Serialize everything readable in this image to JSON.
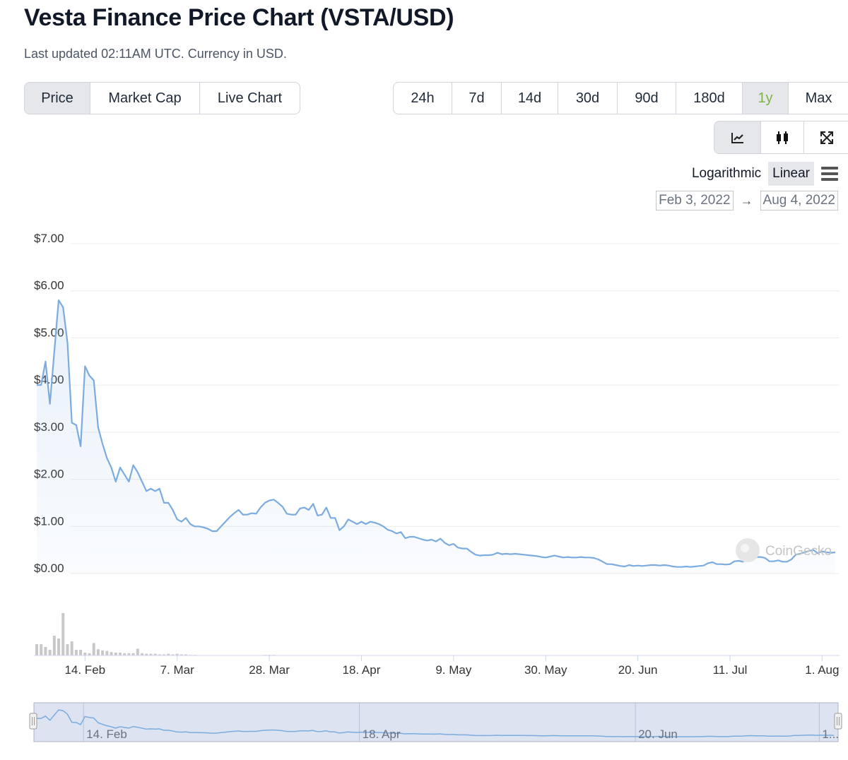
{
  "header": {
    "title": "Vesta Finance Price Chart (VSTA/USD)",
    "subtitle": "Last updated 02:11AM UTC. Currency in USD."
  },
  "type_tabs": [
    {
      "label": "Price",
      "active": true
    },
    {
      "label": "Market Cap",
      "active": false
    },
    {
      "label": "Live Chart",
      "active": false
    }
  ],
  "range_tabs": [
    {
      "label": "24h",
      "active": false
    },
    {
      "label": "7d",
      "active": false
    },
    {
      "label": "14d",
      "active": false
    },
    {
      "label": "30d",
      "active": false
    },
    {
      "label": "90d",
      "active": false
    },
    {
      "label": "180d",
      "active": false
    },
    {
      "label": "1y",
      "active": true
    },
    {
      "label": "Max",
      "active": false
    }
  ],
  "view_tabs": [
    {
      "icon": "line-chart-icon",
      "active": true
    },
    {
      "icon": "candlestick-icon",
      "active": false
    },
    {
      "icon": "expand-icon",
      "active": false
    }
  ],
  "scale": {
    "log_label": "Logarithmic",
    "linear_label": "Linear",
    "active": "Linear"
  },
  "date_range": {
    "from": "Feb 3, 2022",
    "arrow": "→",
    "to": "Aug 4, 2022"
  },
  "watermark": "CoinGecko",
  "colors": {
    "line": "#7cacdf",
    "volume": "#c8c8c8",
    "active_range": "#7cb342",
    "navigator": "#dde3f1"
  },
  "chart_data": {
    "type": "line",
    "title": "",
    "xlabel": "",
    "ylabel": "",
    "ylim": [
      0,
      7
    ],
    "y_ticks": [
      "$7.00",
      "$6.00",
      "$5.00",
      "$4.00",
      "$3.00",
      "$2.00",
      "$1.00",
      "$0.00"
    ],
    "y_tick_values": [
      7,
      6,
      5,
      4,
      3,
      2,
      1,
      0
    ],
    "x_ticks": [
      "14. Feb",
      "7. Mar",
      "28. Mar",
      "18. Apr",
      "9. May",
      "30. May",
      "20. Jun",
      "11. Jul",
      "1. Aug"
    ],
    "x_tick_dates": [
      "2022-02-14",
      "2022-03-07",
      "2022-03-28",
      "2022-04-18",
      "2022-05-09",
      "2022-05-30",
      "2022-06-20",
      "2022-07-11",
      "2022-08-01"
    ],
    "x_range": [
      "2022-02-03",
      "2022-08-04"
    ],
    "grid": true,
    "series": [
      {
        "name": "",
        "points": [
          [
            "2022-02-03",
            4.0
          ],
          [
            "2022-02-04",
            4.0
          ],
          [
            "2022-02-05",
            4.5
          ],
          [
            "2022-02-06",
            3.6
          ],
          [
            "2022-02-07",
            4.7
          ],
          [
            "2022-02-08",
            5.8
          ],
          [
            "2022-02-09",
            5.65
          ],
          [
            "2022-02-10",
            4.9
          ],
          [
            "2022-02-11",
            3.2
          ],
          [
            "2022-02-12",
            3.15
          ],
          [
            "2022-02-13",
            2.7
          ],
          [
            "2022-02-14",
            4.4
          ],
          [
            "2022-02-15",
            4.2
          ],
          [
            "2022-02-16",
            4.1
          ],
          [
            "2022-02-17",
            3.1
          ],
          [
            "2022-02-18",
            2.75
          ],
          [
            "2022-02-19",
            2.45
          ],
          [
            "2022-02-20",
            2.25
          ],
          [
            "2022-02-21",
            1.95
          ],
          [
            "2022-02-22",
            2.25
          ],
          [
            "2022-02-23",
            2.1
          ],
          [
            "2022-02-24",
            1.95
          ],
          [
            "2022-02-25",
            2.3
          ],
          [
            "2022-02-26",
            2.15
          ],
          [
            "2022-02-27",
            1.95
          ],
          [
            "2022-02-28",
            1.75
          ],
          [
            "2022-03-01",
            1.8
          ],
          [
            "2022-03-02",
            1.75
          ],
          [
            "2022-03-03",
            1.8
          ],
          [
            "2022-03-04",
            1.5
          ],
          [
            "2022-03-05",
            1.5
          ],
          [
            "2022-03-06",
            1.35
          ],
          [
            "2022-03-07",
            1.15
          ],
          [
            "2022-03-08",
            1.1
          ],
          [
            "2022-03-09",
            1.18
          ],
          [
            "2022-03-10",
            1.05
          ],
          [
            "2022-03-11",
            1.0
          ],
          [
            "2022-03-12",
            1.0
          ],
          [
            "2022-03-13",
            0.98
          ],
          [
            "2022-03-14",
            0.95
          ],
          [
            "2022-03-15",
            0.9
          ],
          [
            "2022-03-16",
            0.9
          ],
          [
            "2022-03-17",
            1.0
          ],
          [
            "2022-03-18",
            1.1
          ],
          [
            "2022-03-19",
            1.2
          ],
          [
            "2022-03-20",
            1.28
          ],
          [
            "2022-03-21",
            1.35
          ],
          [
            "2022-03-22",
            1.25
          ],
          [
            "2022-03-23",
            1.25
          ],
          [
            "2022-03-24",
            1.28
          ],
          [
            "2022-03-25",
            1.27
          ],
          [
            "2022-03-26",
            1.4
          ],
          [
            "2022-03-27",
            1.5
          ],
          [
            "2022-03-28",
            1.55
          ],
          [
            "2022-03-29",
            1.57
          ],
          [
            "2022-03-30",
            1.5
          ],
          [
            "2022-03-31",
            1.42
          ],
          [
            "2022-04-01",
            1.27
          ],
          [
            "2022-04-02",
            1.25
          ],
          [
            "2022-04-03",
            1.25
          ],
          [
            "2022-04-04",
            1.38
          ],
          [
            "2022-04-05",
            1.4
          ],
          [
            "2022-04-06",
            1.35
          ],
          [
            "2022-04-07",
            1.48
          ],
          [
            "2022-04-08",
            1.23
          ],
          [
            "2022-04-09",
            1.25
          ],
          [
            "2022-04-10",
            1.4
          ],
          [
            "2022-04-11",
            1.18
          ],
          [
            "2022-04-12",
            1.18
          ],
          [
            "2022-04-13",
            0.92
          ],
          [
            "2022-04-14",
            1.0
          ],
          [
            "2022-04-15",
            1.15
          ],
          [
            "2022-04-16",
            1.1
          ],
          [
            "2022-04-17",
            1.05
          ],
          [
            "2022-04-18",
            1.1
          ],
          [
            "2022-04-19",
            1.05
          ],
          [
            "2022-04-20",
            1.1
          ],
          [
            "2022-04-21",
            1.08
          ],
          [
            "2022-04-22",
            1.05
          ],
          [
            "2022-04-23",
            1.0
          ],
          [
            "2022-04-24",
            0.93
          ],
          [
            "2022-04-25",
            0.9
          ],
          [
            "2022-04-26",
            0.85
          ],
          [
            "2022-04-27",
            0.88
          ],
          [
            "2022-04-28",
            0.75
          ],
          [
            "2022-04-29",
            0.78
          ],
          [
            "2022-04-30",
            0.78
          ],
          [
            "2022-05-01",
            0.75
          ],
          [
            "2022-05-02",
            0.72
          ],
          [
            "2022-05-03",
            0.7
          ],
          [
            "2022-05-04",
            0.72
          ],
          [
            "2022-05-05",
            0.68
          ],
          [
            "2022-05-06",
            0.74
          ],
          [
            "2022-05-07",
            0.65
          ],
          [
            "2022-05-08",
            0.6
          ],
          [
            "2022-05-09",
            0.63
          ],
          [
            "2022-05-10",
            0.55
          ],
          [
            "2022-05-11",
            0.53
          ],
          [
            "2022-05-12",
            0.53
          ],
          [
            "2022-05-13",
            0.46
          ],
          [
            "2022-05-14",
            0.4
          ],
          [
            "2022-05-15",
            0.38
          ],
          [
            "2022-05-16",
            0.39
          ],
          [
            "2022-05-17",
            0.39
          ],
          [
            "2022-05-18",
            0.4
          ],
          [
            "2022-05-19",
            0.44
          ],
          [
            "2022-05-20",
            0.41
          ],
          [
            "2022-05-21",
            0.42
          ],
          [
            "2022-05-22",
            0.41
          ],
          [
            "2022-05-23",
            0.42
          ],
          [
            "2022-05-24",
            0.41
          ],
          [
            "2022-05-25",
            0.4
          ],
          [
            "2022-05-26",
            0.39
          ],
          [
            "2022-05-27",
            0.38
          ],
          [
            "2022-05-28",
            0.37
          ],
          [
            "2022-05-29",
            0.35
          ],
          [
            "2022-05-30",
            0.34
          ],
          [
            "2022-05-31",
            0.36
          ],
          [
            "2022-06-01",
            0.38
          ],
          [
            "2022-06-02",
            0.36
          ],
          [
            "2022-06-03",
            0.34
          ],
          [
            "2022-06-04",
            0.35
          ],
          [
            "2022-06-05",
            0.34
          ],
          [
            "2022-06-06",
            0.34
          ],
          [
            "2022-06-07",
            0.35
          ],
          [
            "2022-06-08",
            0.34
          ],
          [
            "2022-06-09",
            0.34
          ],
          [
            "2022-06-10",
            0.33
          ],
          [
            "2022-06-11",
            0.3
          ],
          [
            "2022-06-12",
            0.25
          ],
          [
            "2022-06-13",
            0.2
          ],
          [
            "2022-06-14",
            0.2
          ],
          [
            "2022-06-15",
            0.18
          ],
          [
            "2022-06-16",
            0.16
          ],
          [
            "2022-06-17",
            0.15
          ],
          [
            "2022-06-18",
            0.18
          ],
          [
            "2022-06-19",
            0.16
          ],
          [
            "2022-06-20",
            0.17
          ],
          [
            "2022-06-21",
            0.16
          ],
          [
            "2022-06-22",
            0.17
          ],
          [
            "2022-06-23",
            0.18
          ],
          [
            "2022-06-24",
            0.18
          ],
          [
            "2022-06-25",
            0.17
          ],
          [
            "2022-06-26",
            0.18
          ],
          [
            "2022-06-27",
            0.17
          ],
          [
            "2022-06-28",
            0.15
          ],
          [
            "2022-06-29",
            0.14
          ],
          [
            "2022-06-30",
            0.14
          ],
          [
            "2022-07-01",
            0.15
          ],
          [
            "2022-07-02",
            0.14
          ],
          [
            "2022-07-03",
            0.15
          ],
          [
            "2022-07-04",
            0.16
          ],
          [
            "2022-07-05",
            0.17
          ],
          [
            "2022-07-06",
            0.22
          ],
          [
            "2022-07-07",
            0.24
          ],
          [
            "2022-07-08",
            0.2
          ],
          [
            "2022-07-09",
            0.2
          ],
          [
            "2022-07-10",
            0.19
          ],
          [
            "2022-07-11",
            0.2
          ],
          [
            "2022-07-12",
            0.26
          ],
          [
            "2022-07-13",
            0.27
          ],
          [
            "2022-07-14",
            0.25
          ],
          [
            "2022-07-15",
            0.35
          ],
          [
            "2022-07-16",
            0.37
          ],
          [
            "2022-07-17",
            0.35
          ],
          [
            "2022-07-18",
            0.35
          ],
          [
            "2022-07-19",
            0.33
          ],
          [
            "2022-07-20",
            0.26
          ],
          [
            "2022-07-21",
            0.26
          ],
          [
            "2022-07-22",
            0.28
          ],
          [
            "2022-07-23",
            0.25
          ],
          [
            "2022-07-24",
            0.25
          ],
          [
            "2022-07-25",
            0.3
          ],
          [
            "2022-07-26",
            0.4
          ],
          [
            "2022-07-27",
            0.42
          ],
          [
            "2022-07-28",
            0.45
          ],
          [
            "2022-07-29",
            0.48
          ],
          [
            "2022-07-30",
            0.5
          ],
          [
            "2022-07-31",
            0.43
          ],
          [
            "2022-08-01",
            0.47
          ],
          [
            "2022-08-02",
            0.45
          ],
          [
            "2022-08-03",
            0.44
          ],
          [
            "2022-08-04",
            0.45
          ]
        ]
      }
    ],
    "volume": [
      [
        "2022-02-03",
        0.2
      ],
      [
        "2022-02-04",
        0.2
      ],
      [
        "2022-02-05",
        0.15
      ],
      [
        "2022-02-06",
        0.1
      ],
      [
        "2022-02-07",
        0.35
      ],
      [
        "2022-02-08",
        0.3
      ],
      [
        "2022-02-09",
        0.75
      ],
      [
        "2022-02-10",
        0.2
      ],
      [
        "2022-02-11",
        0.25
      ],
      [
        "2022-02-12",
        0.1
      ],
      [
        "2022-02-13",
        0.1
      ],
      [
        "2022-02-14",
        0.05
      ],
      [
        "2022-02-15",
        0.04
      ],
      [
        "2022-02-16",
        0.22
      ],
      [
        "2022-02-17",
        0.11
      ],
      [
        "2022-02-18",
        0.09
      ],
      [
        "2022-02-19",
        0.08
      ],
      [
        "2022-02-20",
        0.06
      ],
      [
        "2022-02-21",
        0.05
      ],
      [
        "2022-02-22",
        0.05
      ],
      [
        "2022-02-23",
        0.04
      ],
      [
        "2022-02-24",
        0.04
      ],
      [
        "2022-02-25",
        0.04
      ],
      [
        "2022-02-26",
        0.12
      ],
      [
        "2022-02-27",
        0.04
      ],
      [
        "2022-02-28",
        0.03
      ],
      [
        "2022-03-01",
        0.03
      ],
      [
        "2022-03-02",
        0.03
      ],
      [
        "2022-03-03",
        0.02
      ],
      [
        "2022-03-04",
        0.02
      ],
      [
        "2022-03-05",
        0.03
      ],
      [
        "2022-03-06",
        0.02
      ],
      [
        "2022-03-07",
        0.03
      ],
      [
        "2022-03-08",
        0.02
      ],
      [
        "2022-03-09",
        0.02
      ],
      [
        "2022-03-10",
        0.01
      ],
      [
        "2022-03-11",
        0.01
      ],
      [
        "2022-03-27",
        0.01
      ],
      [
        "2022-03-28",
        0.01
      ],
      [
        "2022-03-29",
        0.01
      ],
      [
        "2022-04-10",
        0.005
      ],
      [
        "2022-04-20",
        0.005
      ],
      [
        "2022-05-15",
        0.005
      ],
      [
        "2022-06-15",
        0.005
      ]
    ]
  }
}
